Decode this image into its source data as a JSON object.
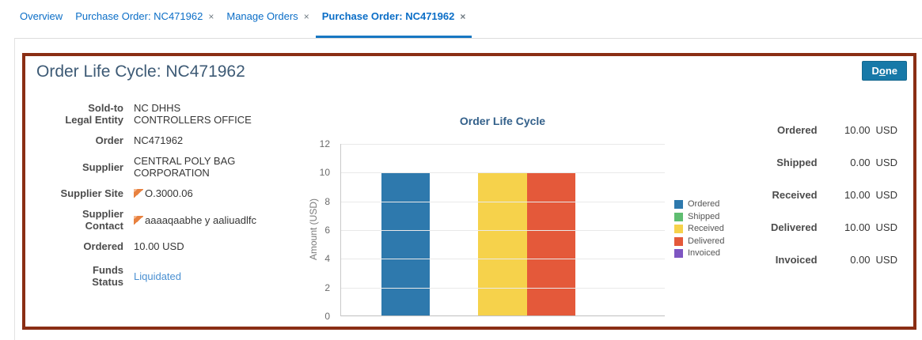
{
  "icons": {
    "close_glyph": "×"
  },
  "tab_bar": {
    "tabs": [
      {
        "label": "Overview",
        "closable": false,
        "active": false
      },
      {
        "label": "Purchase Order: NC471962",
        "closable": true,
        "active": false
      },
      {
        "label": "Manage Orders",
        "closable": true,
        "active": false
      },
      {
        "label": "Purchase Order: NC471962",
        "closable": true,
        "active": true
      }
    ]
  },
  "panel": {
    "title": "Order Life Cycle: NC471962",
    "done_label_prefix": "D",
    "done_label_accesskey": "o",
    "done_label_suffix": "ne"
  },
  "details": {
    "fields": [
      {
        "label_lines": [
          "Sold-to",
          "Legal Entity"
        ],
        "value_lines": [
          "NC DHHS",
          "CONTROLLERS OFFICE"
        ]
      },
      {
        "label_lines": [
          "Order"
        ],
        "value_lines": [
          "NC471962"
        ]
      },
      {
        "label_lines": [
          "Supplier"
        ],
        "value_lines": [
          "CENTRAL POLY BAG",
          "CORPORATION"
        ]
      },
      {
        "label_lines": [
          "Supplier Site"
        ],
        "value_lines": [
          "O.3000.06"
        ],
        "has_flag_icon": true
      },
      {
        "label_lines": [
          "Supplier",
          "Contact"
        ],
        "value_lines": [
          "aaaaqaabhe y aaliuadlfc"
        ],
        "has_flag_icon": true
      },
      {
        "label_lines": [
          "Ordered"
        ],
        "value_lines": [
          "10.00 USD"
        ]
      },
      {
        "label_lines": [
          "Funds",
          "Status"
        ],
        "value_lines": [
          "Liquidated"
        ],
        "is_link": true
      }
    ]
  },
  "chart_data": {
    "type": "bar",
    "title": "Order Life Cycle",
    "xlabel": "",
    "ylabel": "Amount (USD)",
    "ylim": [
      0,
      12
    ],
    "yticks": [
      0,
      2,
      4,
      6,
      8,
      10,
      12
    ],
    "grid": true,
    "legend_position": "right",
    "series": [
      {
        "name": "Ordered",
        "value": 10,
        "color": "#2e79ad"
      },
      {
        "name": "Shipped",
        "value": 0,
        "color": "#5fbd71"
      },
      {
        "name": "Received",
        "value": 10,
        "color": "#f6d24b"
      },
      {
        "name": "Delivered",
        "value": 10,
        "color": "#e4593a"
      },
      {
        "name": "Invoiced",
        "value": 0,
        "color": "#7e56c2"
      }
    ]
  },
  "summary": {
    "rows": [
      {
        "label": "Ordered",
        "amount": "10.00",
        "currency": "USD"
      },
      {
        "label": "Shipped",
        "amount": "0.00",
        "currency": "USD"
      },
      {
        "label": "Received",
        "amount": "10.00",
        "currency": "USD"
      },
      {
        "label": "Delivered",
        "amount": "10.00",
        "currency": "USD"
      },
      {
        "label": "Invoiced",
        "amount": "0.00",
        "currency": "USD"
      }
    ]
  },
  "colors": {
    "panel_border": "#8a2e14",
    "done_button": "#1779a8",
    "tab_accent": "#1777c2",
    "link": "#4a90d2"
  }
}
